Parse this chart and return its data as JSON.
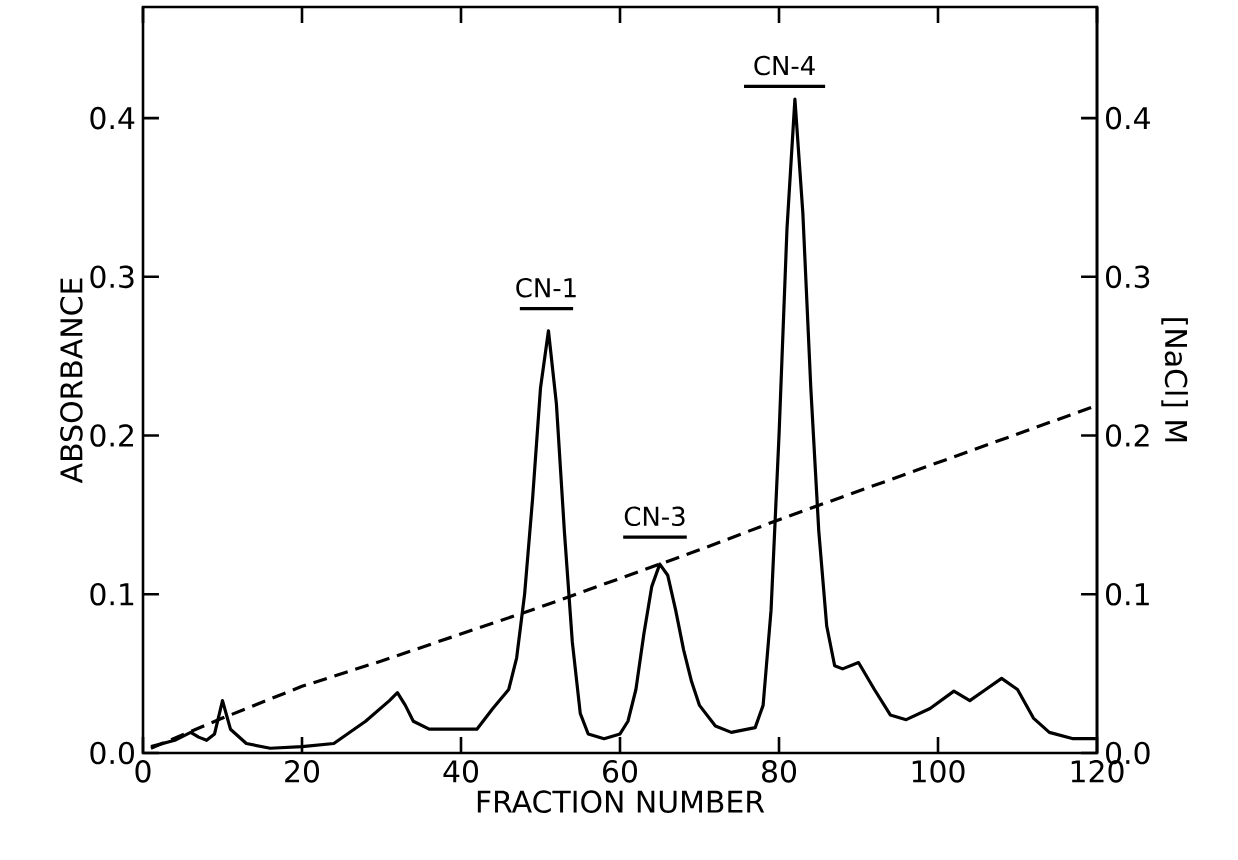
{
  "chart_data": {
    "type": "line",
    "xlabel": "FRACTION NUMBER",
    "ylabel": "ABSORBANCE",
    "y2label": "[NaCl] M",
    "xlim": [
      0,
      120
    ],
    "xticks": [
      0,
      20,
      40,
      60,
      80,
      100,
      120
    ],
    "ylim": [
      0,
      0.47
    ],
    "yticks": [
      {
        "value": 0,
        "label": "0.0"
      },
      0.1,
      0.2,
      0.3,
      0.4
    ],
    "y2lim": [
      0,
      0.47
    ],
    "y2ticks": [
      {
        "value": 0,
        "label": "0.0"
      },
      0.1,
      0.2,
      0.3,
      0.4
    ],
    "series": [
      {
        "color": "#000000",
        "line_style": "solid",
        "x": [
          1,
          4,
          6,
          7,
          8,
          9,
          10,
          11,
          13,
          16,
          20,
          24,
          28,
          31,
          32,
          33,
          34,
          36,
          42,
          44,
          46,
          47,
          48,
          49,
          50,
          51,
          52,
          53,
          54,
          55,
          56,
          58,
          60,
          61,
          62,
          63,
          64,
          65,
          66,
          67,
          68,
          69,
          70,
          72,
          74,
          77,
          78,
          79,
          80,
          81,
          82,
          83,
          84,
          85,
          86,
          87,
          88,
          90,
          92,
          94,
          96,
          99,
          102,
          104,
          106,
          108,
          110,
          112,
          114,
          117,
          120
        ],
        "values": [
          0.004,
          0.008,
          0.013,
          0.01,
          0.008,
          0.012,
          0.033,
          0.015,
          0.006,
          0.003,
          0.004,
          0.006,
          0.02,
          0.033,
          0.038,
          0.03,
          0.02,
          0.015,
          0.015,
          0.028,
          0.04,
          0.06,
          0.1,
          0.16,
          0.23,
          0.266,
          0.22,
          0.14,
          0.07,
          0.025,
          0.012,
          0.009,
          0.012,
          0.02,
          0.04,
          0.075,
          0.105,
          0.119,
          0.112,
          0.09,
          0.065,
          0.045,
          0.03,
          0.017,
          0.013,
          0.016,
          0.03,
          0.09,
          0.2,
          0.33,
          0.412,
          0.34,
          0.23,
          0.14,
          0.08,
          0.055,
          0.053,
          0.057,
          0.04,
          0.024,
          0.021,
          0.028,
          0.039,
          0.033,
          0.04,
          0.047,
          0.04,
          0.022,
          0.013,
          0.009,
          0.009
        ]
      },
      {
        "color": "#000000",
        "line_style": "dashed",
        "axis": "y2",
        "x": [
          1,
          10,
          20,
          30,
          40,
          50,
          60,
          70,
          80,
          90,
          100,
          110,
          120
        ],
        "values": [
          0.003,
          0.022,
          0.042,
          0.058,
          0.075,
          0.092,
          0.11,
          0.128,
          0.147,
          0.165,
          0.183,
          0.201,
          0.219
        ]
      },
      {
        "color": "#000000",
        "line_style": "solid",
        "x": [
          47.4,
          54.1
        ],
        "values": [
          0.28,
          0.28
        ]
      },
      {
        "color": "#000000",
        "line_style": "solid",
        "x": [
          60.4,
          68.4
        ],
        "values": [
          0.136,
          0.136
        ]
      },
      {
        "color": "#000000",
        "line_style": "solid",
        "x": [
          75.6,
          85.8
        ],
        "values": [
          0.42,
          0.42
        ]
      }
    ],
    "annotations": [
      {
        "text": "CN-1",
        "x": 50.75,
        "y": 0.28
      },
      {
        "text": "CN-3",
        "x": 64.4,
        "y": 0.136
      },
      {
        "text": "CN-4",
        "x": 80.7,
        "y": 0.42
      }
    ]
  }
}
